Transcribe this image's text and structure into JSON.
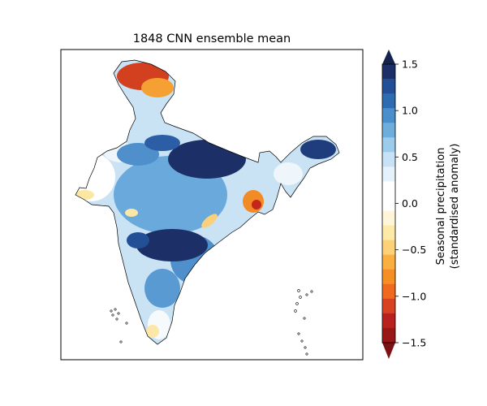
{
  "map": {
    "title": "1848 CNN ensemble mean",
    "region": "India",
    "colors": {
      "wet_strong": "#1a3068",
      "wet": "#3a75b8",
      "wet_light": "#aed4f0",
      "neutral": "#ffffff",
      "dry_light": "#fde9b0",
      "dry": "#f5a032",
      "dry_strong": "#c0281d",
      "border": "#000000"
    }
  },
  "colorbar": {
    "label_line1": "Seasonal precipitation",
    "label_line2": "(standardised anomaly)",
    "min": -1.5,
    "max": 1.5,
    "extend": "both",
    "ticks": [
      "1.5",
      "1.0",
      "0.5",
      "0.0",
      "−0.5",
      "−1.0",
      "−1.5"
    ],
    "levels": [
      "#1c2f67",
      "#224f96",
      "#2e6cb1",
      "#4a8ecb",
      "#6eaedc",
      "#9ccbeb",
      "#c6e2f4",
      "#e6f2fb",
      "#ffffff",
      "#ffffff",
      "#fff6d9",
      "#feeaa7",
      "#fdd177",
      "#f9b040",
      "#f58e25",
      "#ef6a1e",
      "#d94221",
      "#b9211e",
      "#9a1718"
    ],
    "top_arrow_color": "#14244f",
    "bottom_arrow_color": "#7e1116"
  }
}
